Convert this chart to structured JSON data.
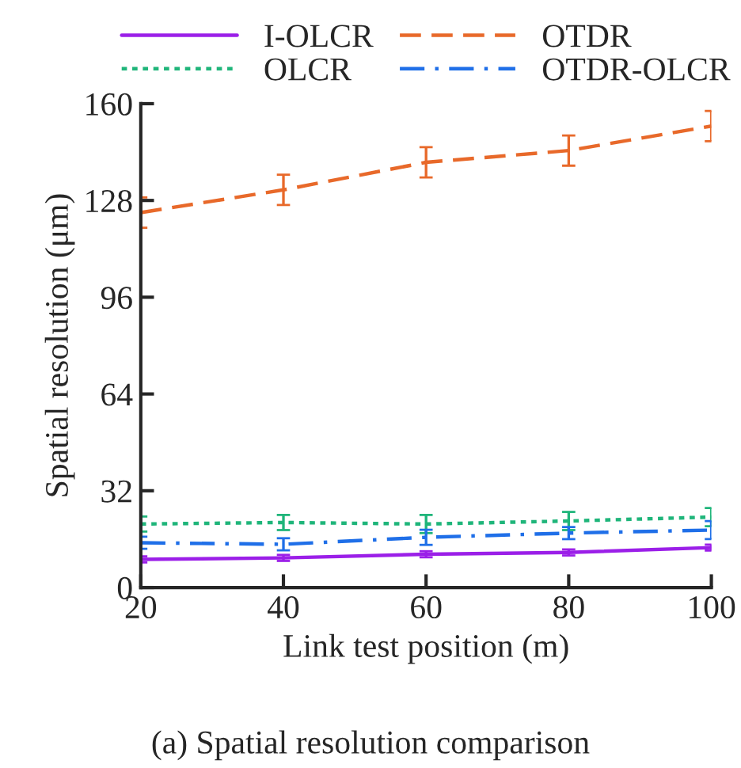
{
  "chart_data": {
    "type": "line",
    "xlabel": "Link test position (m)",
    "ylabel": "Spatial resolution (μm)",
    "x": [
      20,
      40,
      60,
      80,
      100
    ],
    "series": [
      {
        "name": "I-OLCR",
        "color": "#9b1fe8",
        "line_style": "solid",
        "values": [
          9.3,
          9.8,
          11,
          11.6,
          13.2
        ],
        "errors": [
          1,
          1,
          1,
          1,
          1
        ]
      },
      {
        "name": "OLCR",
        "color": "#1fb57a",
        "line_style": "dotted",
        "values": [
          21,
          21.5,
          21,
          22,
          23.3
        ],
        "errors": [
          2.5,
          2.5,
          3,
          3,
          3
        ]
      },
      {
        "name": "OTDR",
        "color": "#e8692a",
        "line_style": "dashed",
        "values": [
          124,
          131.5,
          140.6,
          144.5,
          152.6
        ],
        "errors": [
          5,
          5,
          5,
          5,
          5
        ]
      },
      {
        "name": "OTDR-OLCR",
        "color": "#1f6fe8",
        "line_style": "dashdot",
        "values": [
          14.8,
          14.3,
          16.6,
          18,
          19
        ],
        "errors": [
          2,
          2,
          2.5,
          2,
          3
        ]
      }
    ],
    "xlim": [
      20,
      100
    ],
    "xticks": [
      20,
      40,
      60,
      80,
      100
    ],
    "ylim": [
      0,
      160
    ],
    "yticks": [
      0,
      32,
      64,
      96,
      128,
      160
    ],
    "grid": false,
    "legend": "top",
    "annotations": [
      "(a) Spatial resolution comparison"
    ]
  }
}
